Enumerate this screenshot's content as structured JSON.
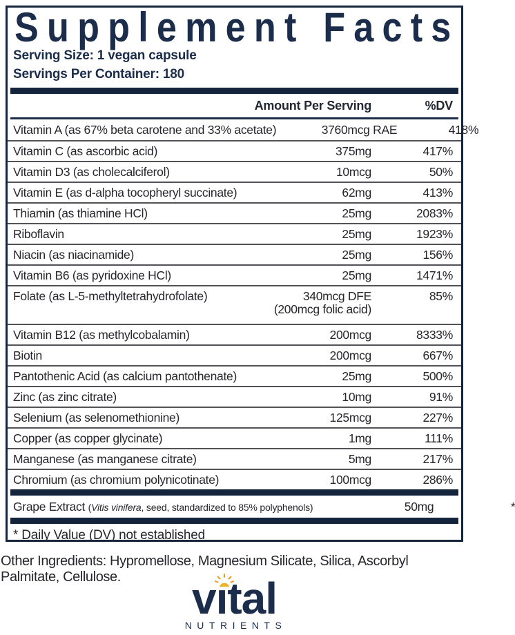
{
  "panel": {
    "title": "Supplement Facts",
    "serving_size": "Serving Size: 1 vegan capsule",
    "servings_per_container": "Servings Per Container: 180",
    "columns": {
      "amount": "Amount Per Serving",
      "dv": "%DV"
    },
    "rows": [
      {
        "name": "Vitamin A (as 67% beta carotene and 33% acetate)",
        "amount": "3760mcg RAE",
        "dv": "418%"
      },
      {
        "name": "Vitamin C (as ascorbic acid)",
        "amount": "375mg",
        "dv": "417%"
      },
      {
        "name": "Vitamin D3 (as cholecalciferol)",
        "amount": "10mcg",
        "dv": "50%"
      },
      {
        "name": "Vitamin E (as d-alpha tocopheryl succinate)",
        "amount": "62mg",
        "dv": "413%"
      },
      {
        "name": "Thiamin (as thiamine HCl)",
        "amount": "25mg",
        "dv": "2083%"
      },
      {
        "name": "Riboflavin",
        "amount": "25mg",
        "dv": "1923%"
      },
      {
        "name": "Niacin (as niacinamide)",
        "amount": "25mg",
        "dv": "156%"
      },
      {
        "name": "Vitamin B6 (as pyridoxine HCl)",
        "amount": "25mg",
        "dv": "1471%"
      },
      {
        "name": "Folate (as L-5-methyltetrahydrofolate)",
        "amount": "340mcg DFE",
        "amount_line2": "(200mcg folic acid)",
        "dv": "85%"
      },
      {
        "name": "Vitamin B12 (as methylcobalamin)",
        "amount": "200mcg",
        "dv": "8333%"
      },
      {
        "name": "Biotin",
        "amount": "200mcg",
        "dv": "667%"
      },
      {
        "name": "Pantothenic Acid (as calcium pantothenate)",
        "amount": "25mg",
        "dv": "500%"
      },
      {
        "name": "Zinc (as zinc citrate)",
        "amount": "10mg",
        "dv": "91%"
      },
      {
        "name": "Selenium (as selenomethionine)",
        "amount": "125mcg",
        "dv": "227%"
      },
      {
        "name": "Copper (as copper glycinate)",
        "amount": "1mg",
        "dv": "111%"
      },
      {
        "name": "Manganese (as manganese citrate)",
        "amount": "5mg",
        "dv": "217%"
      },
      {
        "name": "Chromium (as chromium polynicotinate)",
        "amount": "100mcg",
        "dv": "286%"
      }
    ],
    "grape_row": {
      "name": "Grape Extract ",
      "note_pre": "(",
      "note_italic": "Vitis vinifera",
      "note_post": ", seed, standardized to 85% polyphenols)",
      "amount": "50mg",
      "dv": "*"
    },
    "footnote": "* Daily Value (DV) not established"
  },
  "other_ingredients": "Other Ingredients: Hypromellose, Magnesium Silicate, Silica, Ascorbyl Palmitate, Cellulose.",
  "logo": {
    "wordmark": "vital",
    "subtext": "NUTRIENTS"
  },
  "colors": {
    "brand_navy": "#1b2d4b",
    "bar_navy": "#14243c",
    "body_text": "#26262c",
    "separator_gray": "#515158",
    "sun_yellow": "#f0b42a",
    "sun_rays_orange": "#e79b1e"
  }
}
